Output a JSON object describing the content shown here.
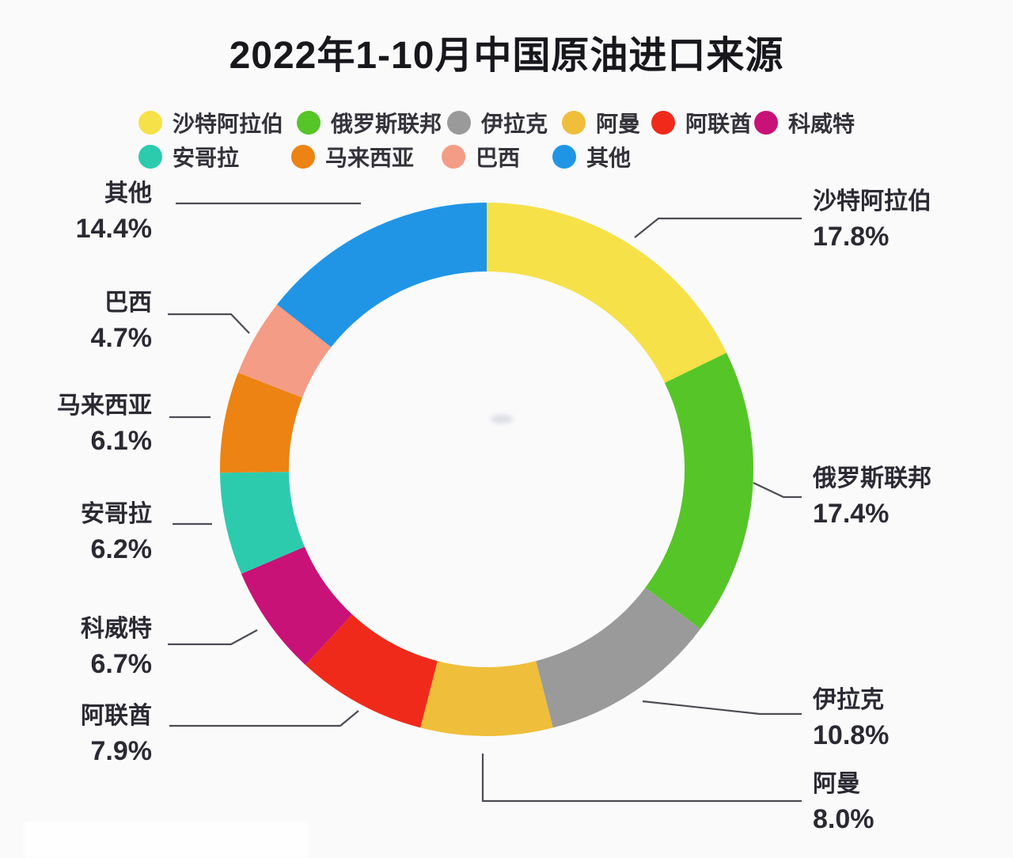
{
  "title": "2022年1-10月中国原油进口来源",
  "chart_data": {
    "type": "pie",
    "subtype": "donut",
    "title": "2022年1-10月中国原油进口来源",
    "unit": "%",
    "start_angle_deg": 0,
    "direction": "clockwise",
    "legend": {
      "position": "top",
      "rows": [
        [
          "沙特阿拉伯",
          "俄罗斯联邦",
          "伊拉克",
          "阿曼",
          "阿联酋",
          "科威特"
        ],
        [
          "安哥拉",
          "马来西亚",
          "巴西",
          "其他"
        ]
      ]
    },
    "slices": [
      {
        "label": "沙特阿拉伯",
        "value": 17.8,
        "value_label": "17.8%",
        "color": "#F6E149"
      },
      {
        "label": "俄罗斯联邦",
        "value": 17.4,
        "value_label": "17.4%",
        "color": "#56C528"
      },
      {
        "label": "伊拉克",
        "value": 10.8,
        "value_label": "10.8%",
        "color": "#9A9A9A"
      },
      {
        "label": "阿曼",
        "value": 8.0,
        "value_label": "8.0%",
        "color": "#EFBE3A"
      },
      {
        "label": "阿联酋",
        "value": 7.9,
        "value_label": "7.9%",
        "color": "#F02A1B"
      },
      {
        "label": "科威特",
        "value": 6.7,
        "value_label": "6.7%",
        "color": "#C81277"
      },
      {
        "label": "安哥拉",
        "value": 6.2,
        "value_label": "6.2%",
        "color": "#2CCBAD"
      },
      {
        "label": "马来西亚",
        "value": 6.1,
        "value_label": "6.1%",
        "color": "#EC8312"
      },
      {
        "label": "巴西",
        "value": 4.7,
        "value_label": "4.7%",
        "color": "#F49C85"
      },
      {
        "label": "其他",
        "value": 14.4,
        "value_label": "14.4%",
        "color": "#2095E6"
      }
    ]
  }
}
